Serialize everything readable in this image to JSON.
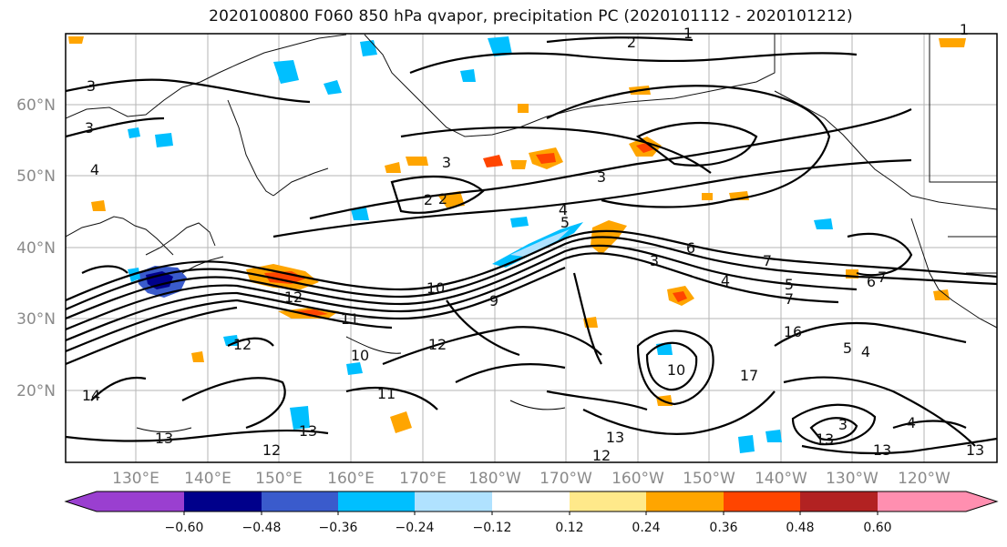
{
  "title": "2020100800 F060 850 hPa qvapor, precipitation PC (2020101112 - 2020101212)",
  "map": {
    "lat_labels": [
      "60°N",
      "50°N",
      "40°N",
      "30°N",
      "20°N"
    ],
    "lon_labels": [
      "130°E",
      "140°E",
      "150°E",
      "160°E",
      "170°E",
      "180°W",
      "170°W",
      "160°W",
      "150°W",
      "140°W",
      "130°W",
      "120°W"
    ],
    "grid": true
  },
  "contour_labels": [
    "1",
    "2",
    "3",
    "4",
    "2",
    "3",
    "3",
    "4",
    "6",
    "5",
    "3",
    "4",
    "5",
    "7",
    "7",
    "6",
    "7",
    "10",
    "12",
    "9",
    "12",
    "11",
    "10",
    "11",
    "12",
    "13",
    "16",
    "17",
    "5",
    "4",
    "13",
    "14",
    "13",
    "12",
    "13",
    "12",
    "13",
    "13",
    "4",
    "3",
    "10",
    "2",
    "1",
    "3"
  ],
  "colorbar": {
    "colors": [
      "#9a3fd0",
      "#00008b",
      "#3a5bcc",
      "#00bfff",
      "#b0e2ff",
      "#ffffff",
      "#ffe98a",
      "#ffa500",
      "#ff4500",
      "#b22222",
      "#ff8fb0"
    ],
    "tick_labels": [
      "−0.60",
      "−0.48",
      "−0.36",
      "−0.24",
      "−0.12",
      "0.12",
      "0.24",
      "0.36",
      "0.48",
      "0.60"
    ],
    "tick_values": [
      -0.6,
      -0.48,
      -0.36,
      -0.24,
      -0.12,
      0.12,
      0.24,
      0.36,
      0.48,
      0.6
    ]
  }
}
